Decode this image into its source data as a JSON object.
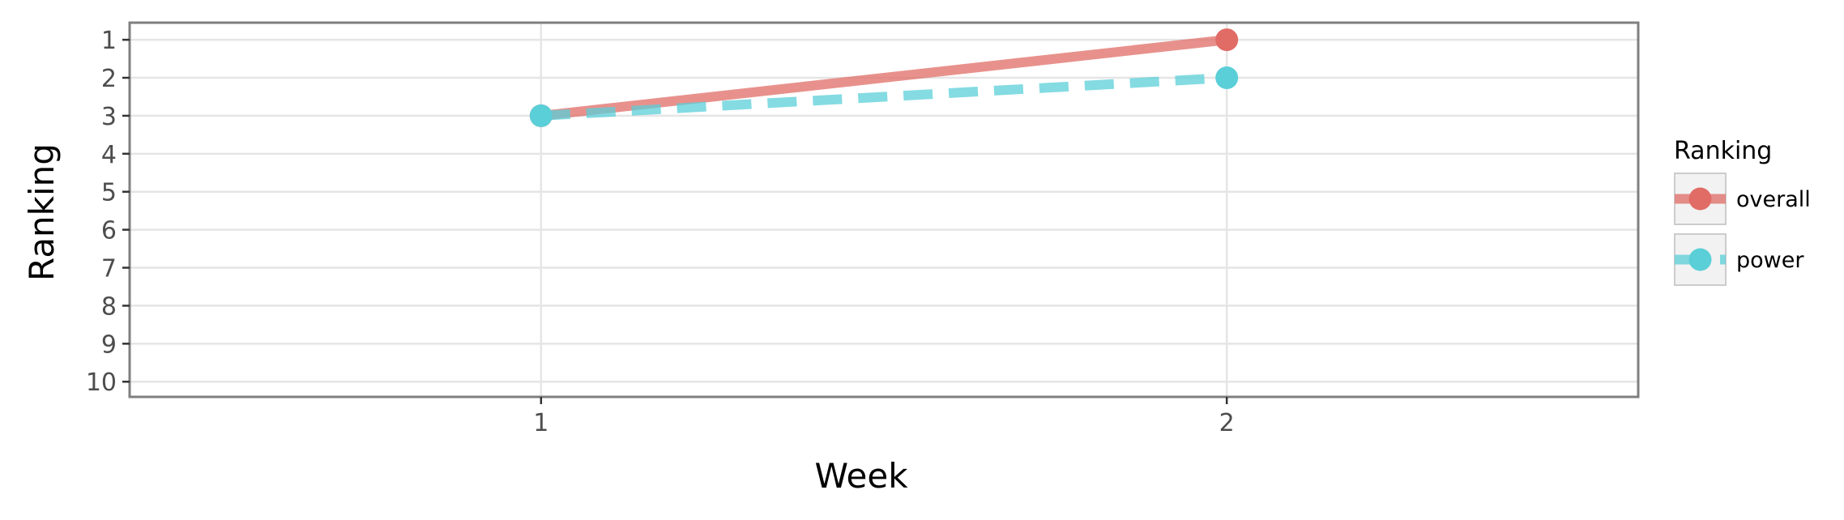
{
  "chart_data": {
    "type": "line",
    "xlabel": "Week",
    "ylabel": "Ranking",
    "x": [
      1,
      2
    ],
    "xlim": [
      0.4,
      2.6
    ],
    "ylim": [
      10.4,
      0.55
    ],
    "y_reversed": true,
    "xticks": [
      "1",
      "2"
    ],
    "yticks": [
      "1",
      "2",
      "3",
      "4",
      "5",
      "6",
      "7",
      "8",
      "9",
      "10"
    ],
    "grid": true,
    "legend": {
      "title": "Ranking",
      "position": "right",
      "entries": [
        "overall",
        "power"
      ]
    },
    "series": [
      {
        "name": "overall",
        "values": [
          3,
          1
        ],
        "color": "#e06c65",
        "line_style": "solid"
      },
      {
        "name": "power",
        "values": [
          3,
          2
        ],
        "color": "#5bcfd8",
        "line_style": "dashed"
      }
    ]
  }
}
